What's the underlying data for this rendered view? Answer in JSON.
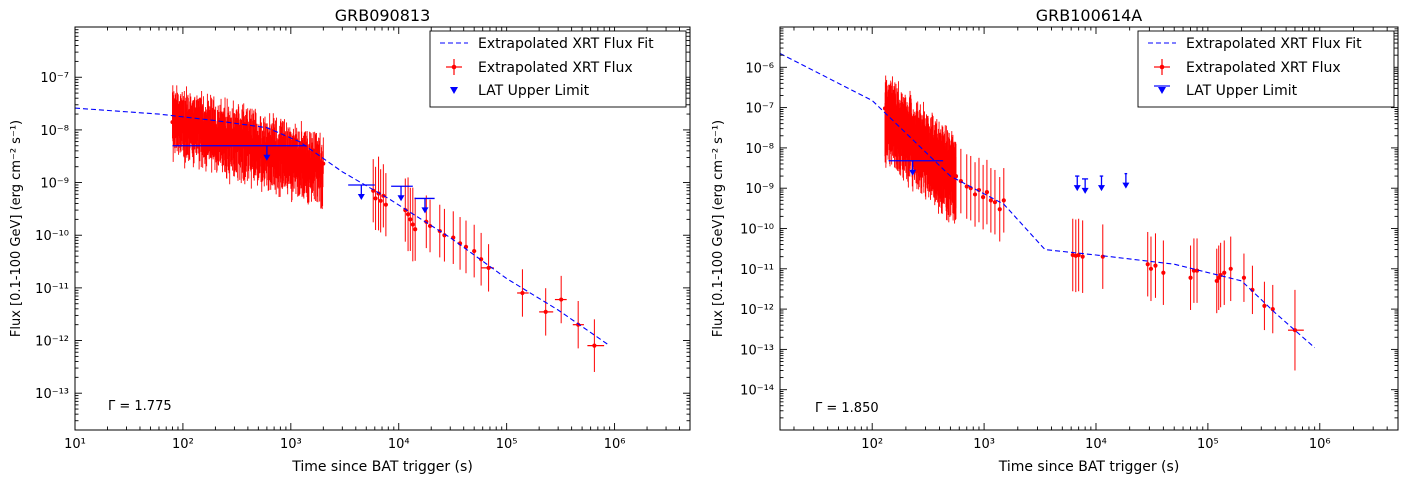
{
  "legend_labels": {
    "fit": "Extrapolated XRT Flux Fit",
    "flux": "Extrapolated XRT Flux",
    "ul": "LAT Upper Limit"
  },
  "xlabel": "Time since BAT trigger (s)",
  "ylabel": "Flux [0.1-100 GeV] (erg cm⁻² s⁻¹)",
  "colors": {
    "fit": "#0000ff",
    "flux": "#ff0000",
    "ul": "#0000ff"
  },
  "chart_data": [
    {
      "type": "scatter",
      "title": "GRB090813",
      "xlabel": "Time since BAT trigger (s)",
      "ylabel": "Flux [0.1-100 GeV] (erg cm⁻² s⁻¹)",
      "xscale": "log",
      "yscale": "log",
      "xlim": [
        10,
        5000000
      ],
      "ylim": [
        2e-14,
        9e-07
      ],
      "x_ticks": [
        10,
        100,
        1000,
        10000,
        100000,
        1000000
      ],
      "x_tick_labels": [
        "10¹",
        "10²",
        "10³",
        "10⁴",
        "10⁵",
        "10⁶"
      ],
      "y_ticks": [
        1e-13,
        1e-12,
        1e-11,
        1e-10,
        1e-09,
        1e-08,
        1e-07
      ],
      "y_tick_labels": [
        "10⁻¹³",
        "10⁻¹²",
        "10⁻¹¹",
        "10⁻¹⁰",
        "10⁻⁹",
        "10⁻⁸",
        "10⁻⁷"
      ],
      "legend_position": "top-right",
      "annotation": "Γ = 1.775",
      "fit_curve": [
        [
          10,
          2.6e-08
        ],
        [
          60,
          2e-08
        ],
        [
          200,
          1.5e-08
        ],
        [
          600,
          1.1e-08
        ],
        [
          1200,
          6e-09
        ],
        [
          3000,
          1.6e-09
        ],
        [
          8000,
          5e-10
        ],
        [
          30000,
          9e-11
        ],
        [
          100000,
          1.5e-11
        ],
        [
          300000,
          3.8e-12
        ],
        [
          900000,
          8e-13
        ]
      ],
      "dense_flux": {
        "x_start": 80,
        "x_end": 2000,
        "count": 420,
        "y_start": 1.6e-08,
        "y_end": 2e-09,
        "scatter_dex": 0.18,
        "err_dex": 0.62
      },
      "flux_points": [
        [
          5800,
          7e-10,
          0.6
        ],
        [
          6100,
          5e-10,
          0.6
        ],
        [
          6500,
          6.2e-10,
          0.7
        ],
        [
          6800,
          4.5e-10,
          0.6
        ],
        [
          7200,
          5.6e-10,
          0.6
        ],
        [
          7600,
          3.8e-10,
          0.6
        ],
        [
          11500,
          3e-10,
          0.6
        ],
        [
          12200,
          2.5e-10,
          0.7
        ],
        [
          12800,
          2e-10,
          0.6
        ],
        [
          13500,
          1.6e-10,
          0.7
        ],
        [
          14200,
          1.3e-10,
          0.6
        ],
        [
          18000,
          1.8e-10,
          0.5
        ],
        [
          19500,
          1.5e-10,
          0.5
        ],
        [
          24000,
          1.2e-10,
          0.5
        ],
        [
          26500,
          1e-10,
          0.5
        ],
        [
          32000,
          9e-11,
          0.5
        ],
        [
          37000,
          7e-11,
          0.5
        ],
        [
          42000,
          6e-11,
          0.5
        ],
        [
          50000,
          5e-11,
          0.5
        ],
        [
          58000,
          3.5e-11,
          0.5
        ],
        [
          68000,
          2.4e-11,
          0.45
        ],
        [
          140000,
          8e-12,
          0.45
        ],
        [
          230000,
          3.5e-12,
          0.45
        ],
        [
          320000,
          6e-12,
          0.45
        ],
        [
          460000,
          2e-12,
          0.45
        ],
        [
          650000,
          8e-13,
          0.5
        ]
      ],
      "flux_xerr": [
        [
          68000,
          2.4e-11,
          58000,
          76000
        ],
        [
          140000,
          8e-12,
          125000,
          160000
        ],
        [
          230000,
          3.5e-12,
          200000,
          270000
        ],
        [
          320000,
          6e-12,
          280000,
          360000
        ],
        [
          460000,
          2e-12,
          410000,
          520000
        ],
        [
          650000,
          8e-13,
          560000,
          800000
        ]
      ],
      "upper_limits": [
        [
          600,
          5e-09,
          80,
          1400
        ],
        [
          4500,
          9e-10,
          3400,
          6000
        ],
        [
          10500,
          8.5e-10,
          8500,
          13500
        ],
        [
          17500,
          5e-10,
          14000,
          21500
        ]
      ]
    },
    {
      "type": "scatter",
      "title": "GRB100614A",
      "xlabel": "Time since BAT trigger (s)",
      "ylabel": "Flux [0.1-100 GeV] (erg cm⁻² s⁻¹)",
      "xscale": "log",
      "yscale": "log",
      "xlim": [
        15,
        5000000
      ],
      "ylim": [
        1e-15,
        1e-05
      ],
      "x_ticks": [
        100,
        1000,
        10000,
        100000,
        1000000
      ],
      "x_tick_labels": [
        "10²",
        "10³",
        "10⁴",
        "10⁵",
        "10⁶"
      ],
      "y_ticks": [
        1e-14,
        1e-13,
        1e-12,
        1e-11,
        1e-10,
        1e-09,
        1e-08,
        1e-07,
        1e-06
      ],
      "y_tick_labels": [
        "10⁻¹⁴",
        "10⁻¹³",
        "10⁻¹²",
        "10⁻¹¹",
        "10⁻¹⁰",
        "10⁻⁹",
        "10⁻⁸",
        "10⁻⁷",
        "10⁻⁶"
      ],
      "legend_position": "top-right",
      "annotation": "Γ = 1.850",
      "fit_curve": [
        [
          15,
          2.2e-06
        ],
        [
          100,
          1.5e-07
        ],
        [
          500,
          2e-09
        ],
        [
          1500,
          4e-10
        ],
        [
          3500,
          3e-11
        ],
        [
          10000,
          2.2e-11
        ],
        [
          50000,
          1.3e-11
        ],
        [
          200000,
          5e-12
        ],
        [
          400000,
          8e-13
        ],
        [
          900000,
          1.1e-13
        ]
      ],
      "dense_flux": {
        "x_start": 130,
        "x_end": 560,
        "count": 380,
        "y_start": 7e-08,
        "y_end": 2e-09,
        "scatter_dex": 0.3,
        "err_dex": 0.9
      },
      "flux_points": [
        [
          560,
          2e-09,
          0.8
        ],
        [
          620,
          1.5e-09,
          0.8
        ],
        [
          700,
          1.1e-09,
          0.8
        ],
        [
          760,
          1e-09,
          0.8
        ],
        [
          830,
          7e-10,
          0.8
        ],
        [
          900,
          9e-10,
          0.8
        ],
        [
          980,
          6e-10,
          0.8
        ],
        [
          1060,
          8e-10,
          0.8
        ],
        [
          1150,
          5e-10,
          0.8
        ],
        [
          1250,
          4.5e-10,
          0.8
        ],
        [
          1380,
          3e-10,
          0.8
        ],
        [
          1500,
          5e-10,
          0.8
        ],
        [
          6200,
          2.2e-11,
          0.9
        ],
        [
          6600,
          2.1e-11,
          0.9
        ],
        [
          7000,
          2.2e-11,
          0.9
        ],
        [
          7600,
          2e-11,
          0.9
        ],
        [
          11500,
          2e-11,
          0.8
        ],
        [
          29000,
          1.3e-11,
          0.8
        ],
        [
          31000,
          1e-11,
          0.8
        ],
        [
          34000,
          1.2e-11,
          0.8
        ],
        [
          40000,
          8e-12,
          0.8
        ],
        [
          70000,
          6e-12,
          0.8
        ],
        [
          75000,
          9e-12,
          0.8
        ],
        [
          80000,
          9e-12,
          0.8
        ],
        [
          120000,
          5e-12,
          0.8
        ],
        [
          125000,
          6e-12,
          0.8
        ],
        [
          130000,
          7e-12,
          0.8
        ],
        [
          140000,
          8e-12,
          0.8
        ],
        [
          160000,
          1e-11,
          0.8
        ],
        [
          210000,
          6e-12,
          0.6
        ],
        [
          250000,
          3e-12,
          0.6
        ],
        [
          320000,
          1.2e-12,
          0.6
        ],
        [
          380000,
          1e-12,
          0.6
        ],
        [
          600000,
          3e-13,
          1.0
        ]
      ],
      "flux_xerr": [
        [
          600000,
          3e-13,
          520000,
          720000
        ]
      ],
      "upper_limits": [
        [
          230,
          4.8e-09,
          140,
          430
        ],
        [
          6800,
          2e-09,
          6500,
          7100
        ],
        [
          8000,
          1.7e-09,
          7500,
          8500
        ],
        [
          11200,
          2e-09,
          10800,
          11600
        ],
        [
          18500,
          2.3e-09,
          18000,
          19000
        ]
      ]
    }
  ]
}
